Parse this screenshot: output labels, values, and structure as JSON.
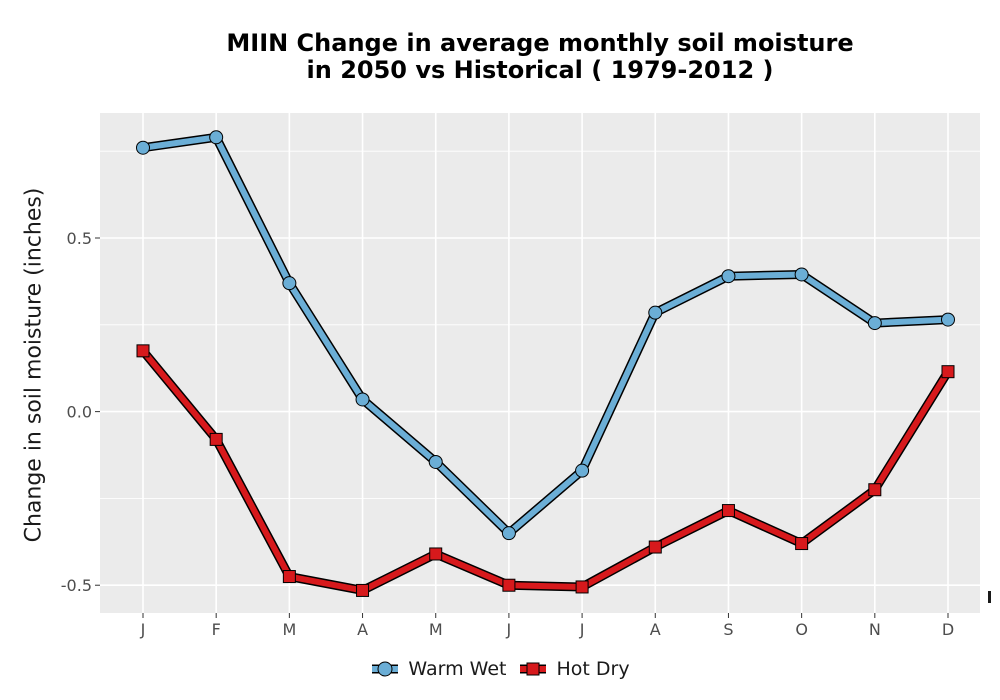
{
  "chart_data": {
    "type": "line",
    "title_line1": "MIIN  Change in average monthly soil moisture",
    "title_line2": "in 2050 vs Historical ( 1979-2012 )",
    "ylabel": "Change in soil moisture (inches)",
    "xlabel": "",
    "categories": [
      "J",
      "F",
      "M",
      "A",
      "M",
      "J",
      "J",
      "A",
      "S",
      "O",
      "N",
      "D"
    ],
    "y_ticks": [
      {
        "value": -0.5,
        "label": "-0.5"
      },
      {
        "value": 0.0,
        "label": "0.0"
      },
      {
        "value": 0.5,
        "label": "0.5"
      }
    ],
    "ylim": [
      -0.58,
      0.86
    ],
    "grid": true,
    "legend_position": "bottom",
    "series": [
      {
        "name": "Warm Wet",
        "color": "#6baed6",
        "marker": "circle",
        "values": [
          0.76,
          0.79,
          0.37,
          0.035,
          -0.145,
          -0.35,
          -0.17,
          0.285,
          0.39,
          0.395,
          0.255,
          0.265
        ]
      },
      {
        "name": "Hot Dry",
        "color": "#d7191c",
        "marker": "square",
        "values": [
          0.175,
          -0.08,
          -0.475,
          -0.515,
          -0.41,
          -0.5,
          -0.505,
          -0.39,
          -0.285,
          -0.38,
          -0.225,
          0.115
        ]
      }
    ]
  }
}
